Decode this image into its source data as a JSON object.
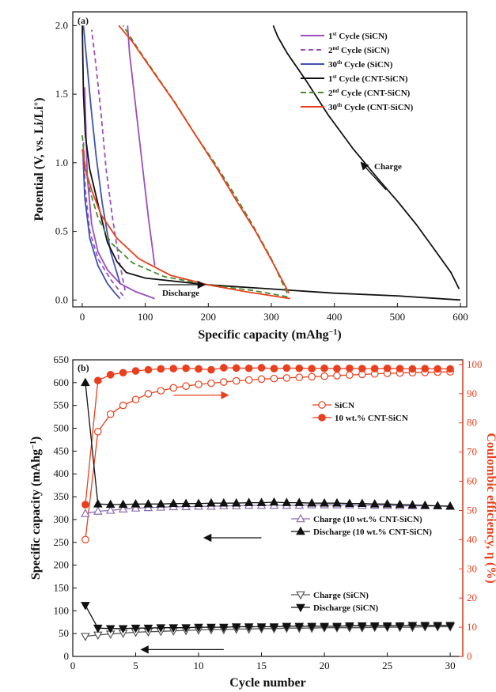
{
  "chart_data": [
    {
      "panel": "(a)",
      "type": "line",
      "xlabel": "Specific capacity (mAhg",
      "xlabel_sup": "−1",
      "xlabel_close": ")",
      "ylabel": "Potential (V, vs. Li/Li",
      "ylabel_sup": "+",
      "ylabel_close": ")",
      "xlim": [
        -15,
        610
      ],
      "ylim": [
        -0.05,
        2.1
      ],
      "xticks": [
        0,
        100,
        200,
        300,
        400,
        500,
        600
      ],
      "yticks": [
        0.0,
        0.5,
        1.0,
        1.5,
        2.0
      ],
      "ytick_labels": [
        "0.0",
        "0.5",
        "1.0",
        "1.5",
        "2.0"
      ],
      "legend_position": "top-right",
      "annotations": [
        {
          "text": "Charge",
          "x": 470,
          "y": 1.1
        },
        {
          "text": "Discharge",
          "x": 120,
          "y": 0.02
        }
      ],
      "series": [
        {
          "name": "1st Cycle (SiCN)",
          "sup_label": [
            "1",
            "st",
            " Cycle (SiCN)"
          ],
          "color": "#9b4fbd",
          "dash": "solid",
          "curves": [
            {
              "role": "discharge",
              "points": [
                [
                  4,
                  1.55
                ],
                [
                  8,
                  0.9
                ],
                [
                  15,
                  0.55
                ],
                [
                  25,
                  0.35
                ],
                [
                  40,
                  0.22
                ],
                [
                  60,
                  0.12
                ],
                [
                  85,
                  0.06
                ],
                [
                  115,
                  0.01
                ]
              ]
            },
            {
              "role": "charge",
              "points": [
                [
                  115,
                  0.25
                ],
                [
                  105,
                  0.6
                ],
                [
                  95,
                  1.0
                ],
                [
                  85,
                  1.4
                ],
                [
                  75,
                  1.8
                ],
                [
                  72,
                  2.0
                ]
              ]
            }
          ]
        },
        {
          "name": "2nd Cycle (SiCN)",
          "sup_label": [
            "2",
            "nd",
            " Cycle (SiCN)"
          ],
          "color": "#9b4fbd",
          "dash": "6,4",
          "curves": [
            {
              "role": "discharge",
              "points": [
                [
                  2,
                  1.15
                ],
                [
                  5,
                  0.8
                ],
                [
                  12,
                  0.5
                ],
                [
                  25,
                  0.3
                ],
                [
                  45,
                  0.15
                ],
                [
                  60,
                  0.06
                ],
                [
                  68,
                  0.01
                ]
              ]
            },
            {
              "role": "charge",
              "points": [
                [
                  68,
                  0.07
                ],
                [
                  58,
                  0.3
                ],
                [
                  48,
                  0.6
                ],
                [
                  38,
                  0.95
                ],
                [
                  30,
                  1.35
                ],
                [
                  22,
                  1.7
                ],
                [
                  15,
                  1.97
                ]
              ]
            }
          ]
        },
        {
          "name": "30th Cycle (SiCN)",
          "sup_label": [
            "30",
            "th",
            " Cycle (SiCN)"
          ],
          "color": "#3f51b5",
          "dash": "solid",
          "curves": [
            {
              "role": "discharge",
              "points": [
                [
                  1,
                  1.1
                ],
                [
                  4,
                  0.75
                ],
                [
                  12,
                  0.45
                ],
                [
                  25,
                  0.25
                ],
                [
                  40,
                  0.12
                ],
                [
                  52,
                  0.05
                ],
                [
                  60,
                  0.01
                ]
              ]
            },
            {
              "role": "charge",
              "points": [
                [
                  60,
                  0.12
                ],
                [
                  45,
                  0.35
                ],
                [
                  32,
                  0.7
                ],
                [
                  22,
                  1.05
                ],
                [
                  14,
                  1.4
                ],
                [
                  8,
                  1.7
                ],
                [
                  2,
                  2.0
                ]
              ]
            }
          ]
        },
        {
          "name": "1st Cycle (CNT-SiCN)",
          "sup_label": [
            "1",
            "st",
            " Cycle (CNT-SiCN)"
          ],
          "color": "#111111",
          "dash": "solid",
          "curves": [
            {
              "role": "discharge",
              "points": [
                [
                  0,
                  2.0
                ],
                [
                  2,
                  1.5
                ],
                [
                  5,
                  1.2
                ],
                [
                  12,
                  0.95
                ],
                [
                  25,
                  0.7
                ],
                [
                  40,
                  0.42
                ],
                [
                  55,
                  0.28
                ],
                [
                  70,
                  0.2
                ],
                [
                  100,
                  0.16
                ],
                [
                  200,
                  0.11
                ],
                [
                  300,
                  0.08
                ],
                [
                  400,
                  0.05
                ],
                [
                  500,
                  0.03
                ],
                [
                  600,
                  0.0
                ]
              ]
            },
            {
              "role": "charge",
              "points": [
                [
                  598,
                  0.08
                ],
                [
                  585,
                  0.2
                ],
                [
                  560,
                  0.36
                ],
                [
                  530,
                  0.55
                ],
                [
                  500,
                  0.72
                ],
                [
                  470,
                  0.88
                ],
                [
                  430,
                  1.1
                ],
                [
                  390,
                  1.35
                ],
                [
                  355,
                  1.6
                ],
                [
                  325,
                  1.8
                ],
                [
                  310,
                  1.92
                ],
                [
                  303,
                  2.0
                ]
              ]
            }
          ]
        },
        {
          "name": "2nd Cycle (CNT-SiCN)",
          "sup_label": [
            "2",
            "nd",
            " Cycle (CNT-SiCN)"
          ],
          "color": "#4a8a35",
          "dash": "7,4",
          "curves": [
            {
              "role": "discharge",
              "points": [
                [
                  0,
                  1.2
                ],
                [
                  4,
                  1.0
                ],
                [
                  12,
                  0.8
                ],
                [
                  25,
                  0.6
                ],
                [
                  45,
                  0.42
                ],
                [
                  80,
                  0.27
                ],
                [
                  130,
                  0.17
                ],
                [
                  200,
                  0.11
                ],
                [
                  270,
                  0.07
                ],
                [
                  330,
                  0.02
                ]
              ]
            },
            {
              "role": "charge",
              "points": [
                [
                  325,
                  0.05
                ],
                [
                  300,
                  0.3
                ],
                [
                  270,
                  0.55
                ],
                [
                  240,
                  0.78
                ],
                [
                  210,
                  1.0
                ],
                [
                  180,
                  1.2
                ],
                [
                  150,
                  1.42
                ],
                [
                  120,
                  1.62
                ],
                [
                  90,
                  1.82
                ],
                [
                  65,
                  2.0
                ]
              ]
            }
          ]
        },
        {
          "name": "30th Cycle (CNT-SiCN)",
          "sup_label": [
            "30",
            "th",
            " Cycle (CNT-SiCN)"
          ],
          "color": "#e8401e",
          "dash": "solid",
          "curves": [
            {
              "role": "discharge",
              "points": [
                [
                  0,
                  1.1
                ],
                [
                  5,
                  0.95
                ],
                [
                  15,
                  0.8
                ],
                [
                  30,
                  0.62
                ],
                [
                  55,
                  0.45
                ],
                [
                  90,
                  0.3
                ],
                [
                  140,
                  0.18
                ],
                [
                  200,
                  0.11
                ],
                [
                  260,
                  0.06
                ],
                [
                  330,
                  0.01
                ]
              ]
            },
            {
              "role": "charge",
              "points": [
                [
                  328,
                  0.05
                ],
                [
                  305,
                  0.25
                ],
                [
                  275,
                  0.5
                ],
                [
                  245,
                  0.72
                ],
                [
                  215,
                  0.95
                ],
                [
                  180,
                  1.2
                ],
                [
                  145,
                  1.45
                ],
                [
                  110,
                  1.68
                ],
                [
                  80,
                  1.88
                ],
                [
                  58,
                  2.0
                ]
              ]
            }
          ]
        }
      ]
    },
    {
      "panel": "(b)",
      "type": "scatter",
      "xlabel": "Cycle number",
      "ylabel": "Specific capacity (mAhg",
      "ylabel_sup": "−1",
      "ylabel_close": ")",
      "y2label": "Coulombic efficiency, η (%)",
      "xlim": [
        0,
        31
      ],
      "ylim": [
        0,
        650
      ],
      "y2lim": [
        0,
        101.6
      ],
      "xticks": [
        0,
        5,
        10,
        15,
        20,
        25,
        30
      ],
      "yticks": [
        0,
        50,
        100,
        150,
        200,
        250,
        300,
        350,
        400,
        450,
        500,
        550,
        600,
        650
      ],
      "y2ticks": [
        0,
        10,
        20,
        30,
        40,
        50,
        60,
        70,
        80,
        90,
        100
      ],
      "legend_position": "right",
      "x": [
        1,
        2,
        3,
        4,
        5,
        6,
        7,
        8,
        9,
        10,
        11,
        12,
        13,
        14,
        15,
        16,
        17,
        18,
        19,
        20,
        21,
        22,
        23,
        24,
        25,
        26,
        27,
        28,
        29,
        30
      ],
      "series": [
        {
          "name": "SiCN",
          "axis": "right",
          "marker": "open-circle",
          "color": "#e8401e",
          "values": [
            40,
            77,
            83,
            86,
            88,
            90,
            91,
            92,
            92.6,
            93.2,
            93.6,
            94,
            94.4,
            94.7,
            95,
            95.2,
            95.4,
            95.6,
            95.8,
            96,
            96.2,
            96.4,
            96.6,
            96.8,
            97,
            97.1,
            97.2,
            97.3,
            97.4,
            97.5
          ]
        },
        {
          "name": "10 wt.% CNT-SiCN",
          "axis": "right",
          "marker": "filled-circle",
          "color": "#e8401e",
          "values": [
            52,
            94.5,
            96.5,
            97.2,
            97.8,
            98.2,
            98.5,
            98.6,
            98.7,
            98.5,
            98.2,
            98.9,
            98.8,
            98.7,
            98.9,
            98.6,
            98.8,
            98.7,
            98.6,
            98.7,
            98.6,
            98.7,
            98.6,
            98.6,
            98.7,
            98.6,
            98.5,
            98.6,
            98.5,
            98.5
          ]
        },
        {
          "name": "Charge (10 wt.% CNT-SiCN)",
          "axis": "left",
          "marker": "open-triangle-up",
          "color": "#8a6fb0",
          "values": [
            313,
            318,
            320,
            323,
            325,
            326,
            327,
            328,
            328,
            329,
            329,
            330,
            330,
            331,
            331,
            331,
            331,
            331,
            332,
            332,
            332,
            332,
            331,
            331,
            331,
            330,
            330,
            330,
            330,
            329
          ]
        },
        {
          "name": "Discharge (10 wt.% CNT-SiCN)",
          "axis": "left",
          "marker": "filled-triangle-up",
          "color": "#111111",
          "values": [
            600,
            334,
            333,
            333,
            334,
            334,
            334,
            335,
            335,
            335,
            336,
            336,
            336,
            337,
            337,
            338,
            337,
            337,
            336,
            336,
            336,
            335,
            335,
            334,
            334,
            333,
            332,
            331,
            330,
            329
          ]
        },
        {
          "name": "Charge (SiCN)",
          "axis": "left",
          "marker": "open-triangle-down",
          "color": "#555555",
          "values": [
            44,
            47,
            49,
            51,
            53,
            54,
            55,
            56,
            57,
            58,
            59,
            59,
            60,
            60,
            61,
            61,
            62,
            62,
            62,
            63,
            63,
            63,
            63,
            64,
            64,
            64,
            64,
            65,
            65,
            65
          ]
        },
        {
          "name": "Discharge (SiCN)",
          "axis": "left",
          "marker": "filled-triangle-down",
          "color": "#111111",
          "values": [
            112,
            62,
            61,
            61,
            62,
            62,
            63,
            63,
            63,
            64,
            64,
            64,
            65,
            65,
            65,
            65,
            66,
            66,
            66,
            66,
            66,
            67,
            67,
            67,
            67,
            67,
            68,
            68,
            68,
            68
          ]
        }
      ],
      "arrows": [
        {
          "points_to": "right",
          "color": "#e8401e",
          "x_from": 8,
          "x_to": 12.3,
          "y2": 89.5
        },
        {
          "points_to": "left",
          "color": "#111111",
          "x_from": 15,
          "x_to": 10.5,
          "y": 260
        },
        {
          "points_to": "left",
          "color": "#111111",
          "x_from": 12,
          "x_to": 5.5,
          "y": 15
        }
      ]
    }
  ]
}
